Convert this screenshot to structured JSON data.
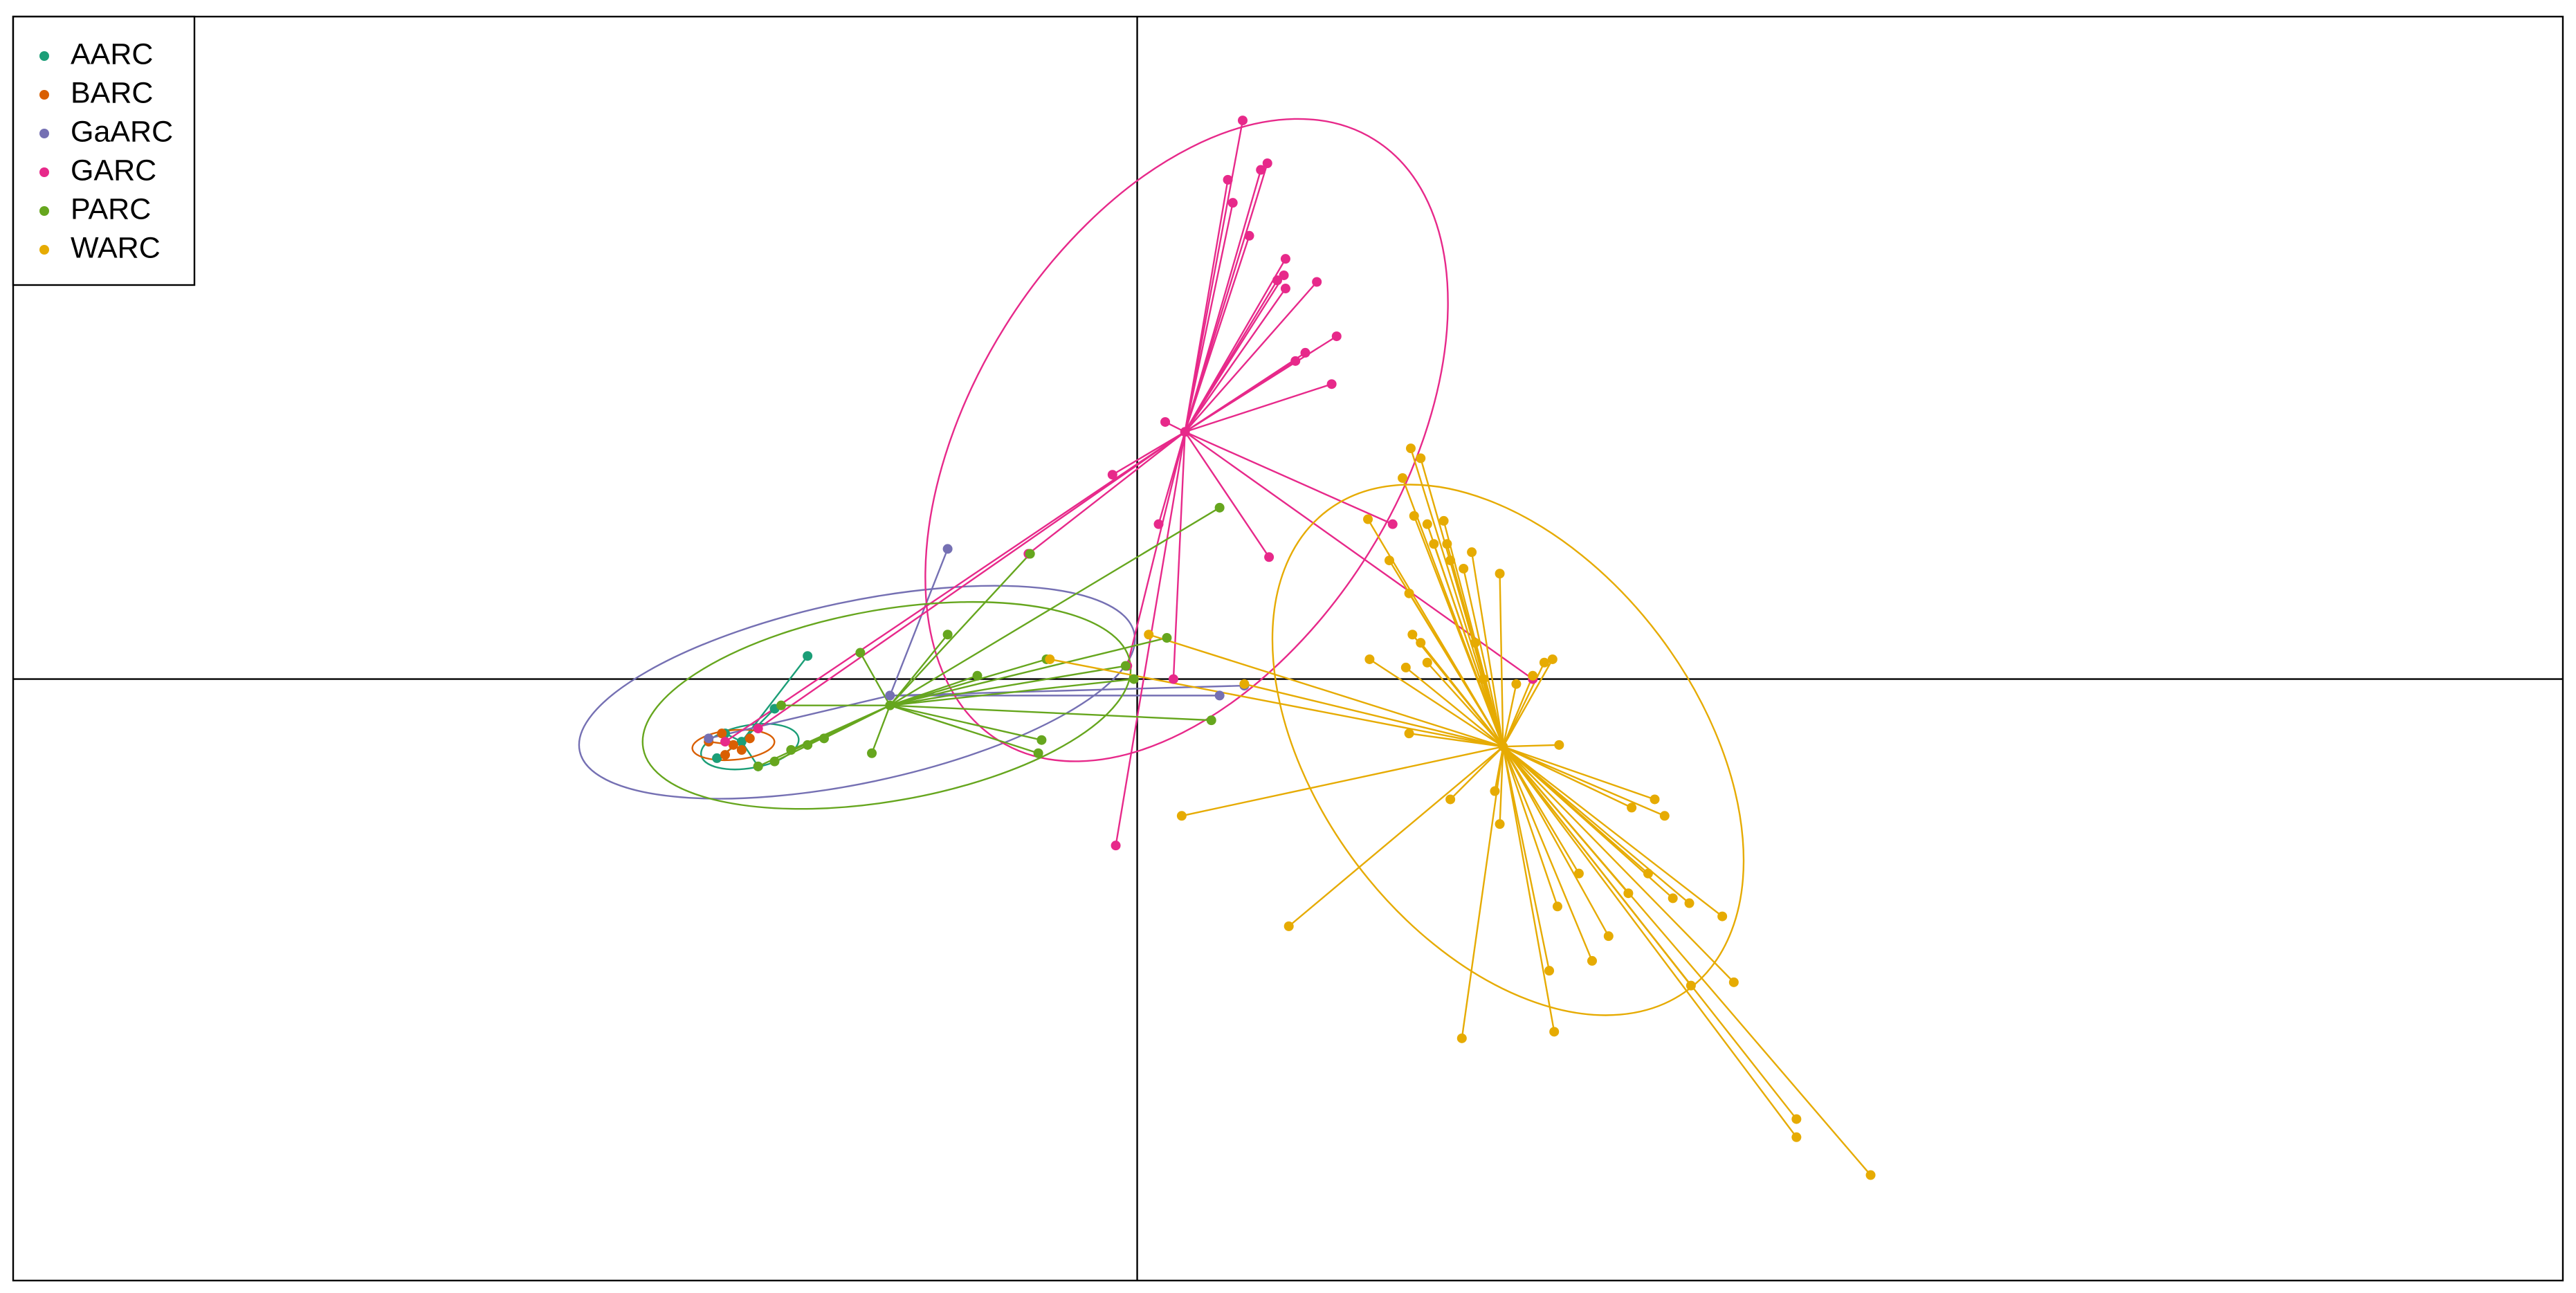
{
  "chart_data": {
    "type": "scatter",
    "xlim": [
      -682,
      865
    ],
    "ylim": [
      -365,
      402
    ],
    "legend": "top-left",
    "series": [
      {
        "name": "AARC",
        "color": "#1b9e77",
        "center_x": -240,
        "center_y": -38,
        "ellipse": {
          "cx": -235,
          "cy": -41,
          "rx": 30,
          "ry": 13,
          "angle": 10
        },
        "x": [
          -200,
          -220,
          -250,
          -255,
          -230
        ],
        "values": [
          14,
          -18,
          -33,
          -48,
          -53
        ]
      },
      {
        "name": "BARC",
        "color": "#d95f02",
        "center_x": -245,
        "center_y": -40,
        "ellipse": {
          "cx": -245,
          "cy": -40,
          "rx": 25,
          "ry": 9,
          "angle": 5
        },
        "x": [
          -260,
          -250,
          -240,
          -235,
          -252
        ],
        "values": [
          -38,
          -46,
          -43,
          -36,
          -33
        ]
      },
      {
        "name": "GaARC",
        "color": "#7570b3",
        "center_x": -150,
        "center_y": -10,
        "ellipse": {
          "cx": -170,
          "cy": -8,
          "rx": 172,
          "ry": 55,
          "angle": 12
        },
        "x": [
          -115,
          65,
          50,
          -260
        ],
        "values": [
          79,
          -4,
          -10,
          -36
        ]
      },
      {
        "name": "GARC",
        "color": "#e7298a",
        "center_x": 29,
        "center_y": 150,
        "ellipse": {
          "cx": 30,
          "cy": 145,
          "rx": 215,
          "ry": 130,
          "angle": 58
        },
        "x": [
          64,
          79,
          75,
          55,
          58,
          68,
          90,
          89,
          85,
          90,
          109,
          121,
          102,
          96,
          118,
          17,
          -15,
          13,
          80,
          155,
          -13,
          22,
          -6,
          -66,
          -230,
          -250,
          240
        ],
        "values": [
          339,
          313,
          309,
          303,
          289,
          269,
          255,
          245,
          242,
          237,
          241,
          208,
          198,
          193,
          179,
          156,
          124,
          94,
          74,
          94,
          -101,
          0,
          8,
          76,
          -30,
          -38,
          0
        ]
      },
      {
        "name": "PARC",
        "color": "#66a61e",
        "center_x": -150,
        "center_y": -16,
        "ellipse": {
          "cx": -152,
          "cy": -16,
          "rx": 150,
          "ry": 58,
          "angle": 10
        },
        "x": [
          50,
          -65,
          -115,
          -168,
          -97,
          -55,
          18,
          45,
          -58,
          -60,
          -161,
          -7,
          -230,
          -220,
          -210,
          -200,
          -190,
          -216,
          -2
        ],
        "values": [
          104,
          76,
          27,
          16,
          2,
          12,
          25,
          -25,
          -37,
          -45,
          -45,
          8,
          -53,
          -50,
          -43,
          -40,
          -36,
          -16,
          0
        ]
      },
      {
        "name": "WARC",
        "color": "#e6ab02",
        "center_x": 222,
        "center_y": -41,
        "ellipse": {
          "cx": 225,
          "cy": -43,
          "rx": 182,
          "ry": 115,
          "angle": -53
        },
        "x": [
          166,
          172,
          161,
          140,
          168,
          176,
          186,
          180,
          188,
          190,
          198,
          203,
          220,
          153,
          165,
          167,
          141,
          172,
          163,
          176,
          205,
          210,
          230,
          240,
          252,
          247,
          165,
          190,
          217,
          220,
          256,
          314,
          320,
          300,
          310,
          325,
          335,
          355,
          268,
          298,
          255,
          286,
          276,
          336,
          362,
          250,
          197,
          253,
          400,
          400,
          445,
          92,
          27,
          -53,
          7,
          65
        ],
        "values": [
          140,
          134,
          122,
          97,
          99,
          94,
          96,
          82,
          82,
          72,
          67,
          77,
          64,
          72,
          52,
          27,
          12,
          22,
          7,
          10,
          22,
          0,
          -3,
          2,
          12,
          10,
          -33,
          -73,
          -68,
          -88,
          -40,
          -73,
          -83,
          -78,
          -118,
          -133,
          -136,
          -144,
          -118,
          -130,
          -138,
          -156,
          -171,
          -186,
          -184,
          -177,
          -218,
          -214,
          -267,
          -278,
          -301,
          -150,
          -83,
          12,
          27,
          -3
        ]
      }
    ]
  }
}
